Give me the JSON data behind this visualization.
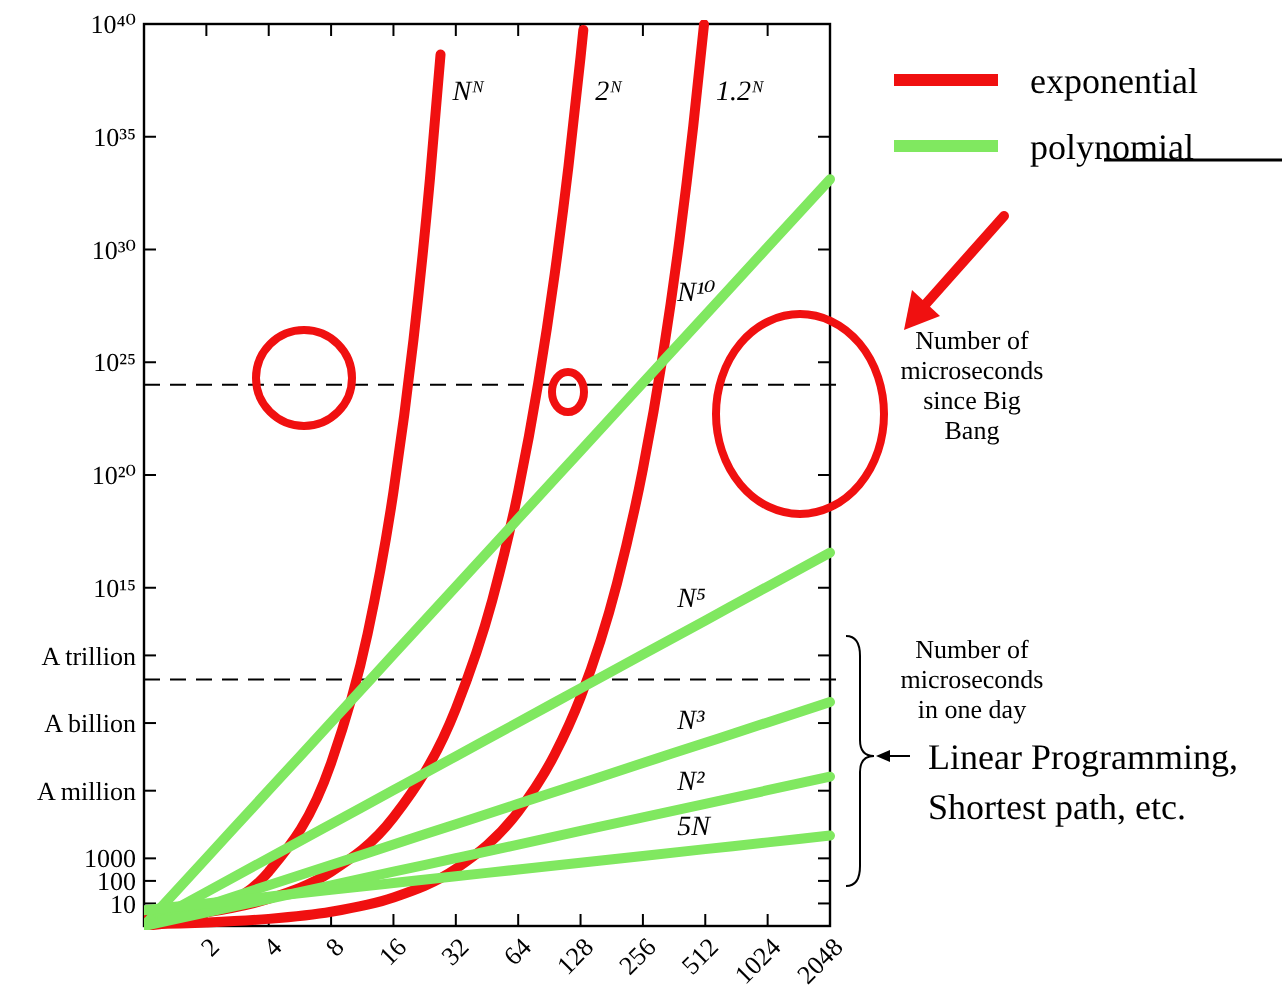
{
  "chart_data": {
    "type": "line",
    "log": "xy",
    "xlim": [
      1,
      2048
    ],
    "ylim": [
      1,
      1e+40
    ],
    "xticks": [
      2,
      4,
      8,
      16,
      32,
      64,
      128,
      256,
      512,
      1024,
      2048
    ],
    "yticks": [
      {
        "value": 1e+40,
        "label": "10⁴⁰"
      },
      {
        "value": 1e+35,
        "label": "10³⁵"
      },
      {
        "value": 1e+30,
        "label": "10³⁰"
      },
      {
        "value": 1e+25,
        "label": "10²⁵"
      },
      {
        "value": 1e+20,
        "label": "10²⁰"
      },
      {
        "value": 1000000000000000.0,
        "label": "10¹⁵"
      },
      {
        "value": 1000000000000.0,
        "label": "A trillion"
      },
      {
        "value": 1000000000.0,
        "label": "A billion"
      },
      {
        "value": 1000000.0,
        "label": "A million"
      },
      1000,
      100,
      10
    ],
    "grid": false,
    "legend": "top right",
    "marker": "none",
    "line_style": "solid",
    "annotations": [
      "exponential",
      "polynomial",
      "Linear Programming, Shortest path, etc."
    ],
    "ref_lines": [
      {
        "axis": "y",
        "value": 1e+24,
        "label": "Number of microseconds since Big Bang",
        "line_style": "dashed",
        "color": "#000000"
      },
      {
        "axis": "y",
        "value": 86400000000.0,
        "label": "Number of microseconds in one day",
        "line_style": "dashed",
        "color": "#000000"
      }
    ],
    "series": [
      {
        "name": "Nᴺ",
        "color": "#f01010",
        "x": [
          1,
          2,
          4,
          8,
          12,
          16,
          20,
          24,
          27
        ],
        "values": [
          1,
          4,
          256,
          16800000.0,
          8900000000000.0,
          1.8e+19,
          1.05e+26,
          1.33e+33,
          4.4e+38
        ]
      },
      {
        "name": "2ᴺ",
        "color": "#f01010",
        "x": [
          1,
          2,
          4,
          8,
          16,
          32,
          48,
          64,
          80,
          96,
          112,
          128,
          132
        ],
        "values": [
          2,
          4,
          16,
          256,
          65536,
          4290000000.0,
          281000000000000.0,
          1.84e+19,
          1.21e+24,
          7.92e+28,
          5.19e+33,
          3.4e+38,
          5.44e+39
        ]
      },
      {
        "name": "1.2ᴺ",
        "color": "#f01010",
        "x": [
          1,
          2,
          4,
          8,
          16,
          32,
          64,
          96,
          128,
          192,
          256,
          320,
          384,
          448,
          505
        ],
        "values": [
          1.2,
          1.44,
          2.07,
          4.3,
          18.5,
          342,
          117000.0,
          40000000.0,
          13700000000.0,
          1590000000000000.0,
          1.86e+20,
          2.18e+25,
          2.55e+30,
          2.98e+35,
          9.7e+39
        ]
      },
      {
        "name": "N¹⁰",
        "color": "#80e860",
        "x": [
          1,
          2,
          4,
          8,
          16,
          32,
          64,
          128,
          256,
          512,
          1024,
          2048
        ],
        "values": [
          1,
          1024,
          1050000.0,
          1070000000.0,
          1100000000000.0,
          1130000000000000.0,
          1.15e+18,
          1.18e+21,
          1.21e+24,
          1.24e+27,
          1.27e+30,
          1.3e+33
        ]
      },
      {
        "name": "N⁵",
        "color": "#80e860",
        "x": [
          1,
          2,
          4,
          8,
          16,
          32,
          64,
          128,
          256,
          512,
          1024,
          2048
        ],
        "values": [
          1,
          32,
          1024,
          32768,
          1050000.0,
          33600000.0,
          1070000000.0,
          34400000000.0,
          1100000000000.0,
          35200000000000.0,
          1130000000000000.0,
          3.6e+16
        ]
      },
      {
        "name": "N³",
        "color": "#80e860",
        "x": [
          1,
          2,
          4,
          8,
          16,
          32,
          64,
          128,
          256,
          512,
          1024,
          2048
        ],
        "values": [
          1,
          8,
          64,
          512,
          4096,
          32768,
          262144,
          2100000.0,
          16800000.0,
          134000000.0,
          1070000000.0,
          8590000000.0
        ]
      },
      {
        "name": "N²",
        "color": "#80e860",
        "x": [
          1,
          2,
          4,
          8,
          16,
          32,
          64,
          128,
          256,
          512,
          1024,
          2048
        ],
        "values": [
          1,
          4,
          16,
          64,
          256,
          1024,
          4096,
          16384,
          65536,
          262144,
          1048576,
          4194304
        ]
      },
      {
        "name": "5N",
        "color": "#80e860",
        "x": [
          1,
          2,
          4,
          8,
          16,
          32,
          64,
          128,
          256,
          512,
          1024,
          2048
        ],
        "values": [
          5,
          10,
          20,
          40,
          80,
          160,
          320,
          640,
          1280,
          2560,
          5120,
          10240
        ]
      }
    ]
  }
}
